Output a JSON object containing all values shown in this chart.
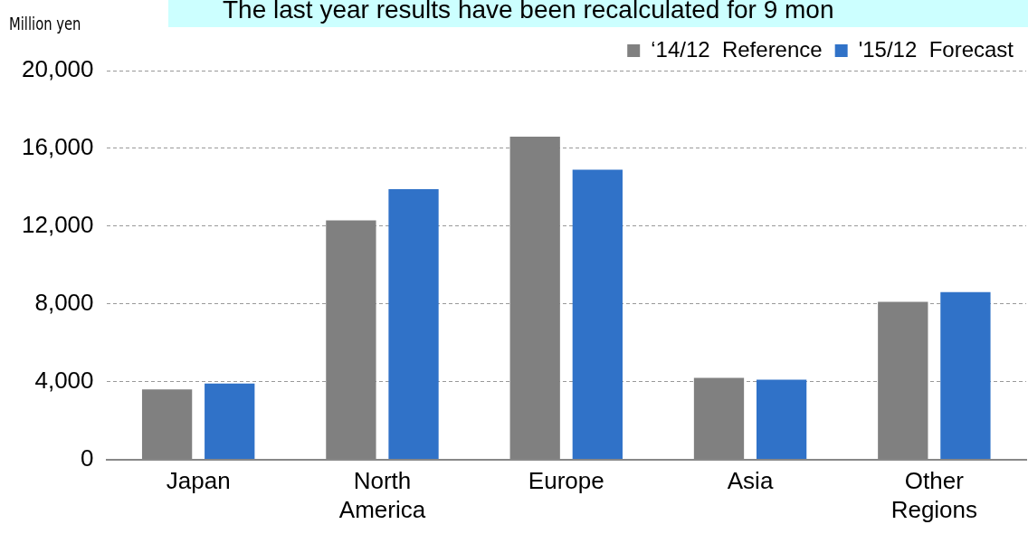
{
  "chart_data": {
    "type": "bar",
    "title": "The last year results have been recalculated for 9 mon",
    "ylabel": "Million yen",
    "categories": [
      "Japan",
      "North America",
      "Europe",
      "Asia",
      "Other Regions"
    ],
    "series": [
      {
        "name": "‘14/12  Reference",
        "color": "#808080",
        "values": [
          3600,
          12300,
          16600,
          4200,
          8100
        ]
      },
      {
        "name": "'15/12  Forecast",
        "color": "#3072c8",
        "values": [
          3900,
          13900,
          14900,
          4100,
          8600
        ]
      }
    ],
    "ylim": [
      0,
      20000
    ],
    "yticks": [
      {
        "value": 0,
        "label": "0"
      },
      {
        "value": 4000,
        "label": "4,000"
      },
      {
        "value": 8000,
        "label": "8,000"
      },
      {
        "value": 12000,
        "label": "12,000"
      },
      {
        "value": 16000,
        "label": "16,000"
      },
      {
        "value": 20000,
        "label": "20,000"
      }
    ],
    "grid": "y",
    "legend": "top right"
  }
}
